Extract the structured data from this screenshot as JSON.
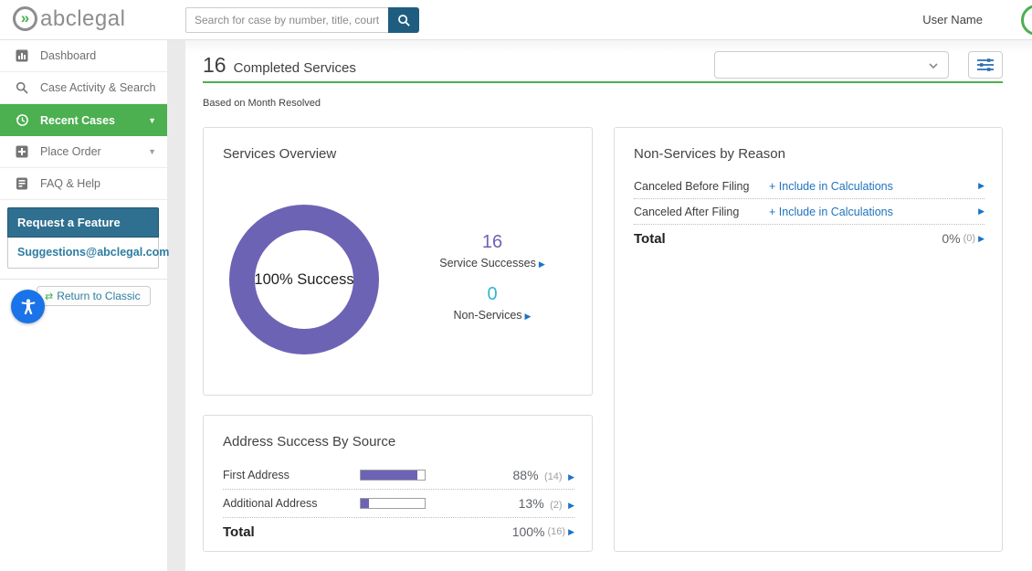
{
  "colors": {
    "accent_green": "#4caf50",
    "teal_dark": "#1e5d80",
    "teal_header": "#2f6f8f",
    "teal_link": "#2e7da0",
    "link_blue": "#1e73be",
    "arrow_blue": "#1a73c8",
    "purple": "#6d63b5",
    "cyan": "#2fb9c9",
    "slider_icon_blue": "#2a6db5"
  },
  "icons": {
    "guillemets": "»",
    "caret_down": "▼",
    "play_arrow": "▶",
    "swap_arrows": "⇄"
  },
  "header": {
    "logo_text": "abclegal",
    "search_placeholder": "Search for case by number, title, court...",
    "user_name": "User Name"
  },
  "sidebar": {
    "items": [
      {
        "label": "Dashboard"
      },
      {
        "label": "Case Activity & Search"
      },
      {
        "label": "Recent Cases",
        "active": true
      },
      {
        "label": "Place Order"
      },
      {
        "label": "FAQ & Help"
      }
    ],
    "request_feature_title": "Request a Feature",
    "request_feature_email": "Suggestions@abclegal.com",
    "return_to_classic": "Return to Classic"
  },
  "main": {
    "completed_count": "16",
    "completed_label": "Completed Services",
    "subtitle": "Based on Month Resolved",
    "services_overview": {
      "title": "Services Overview",
      "donut_center": "100% Success",
      "stats": [
        {
          "value": "16",
          "label": "Service Successes"
        },
        {
          "value": "0",
          "label": "Non-Services"
        }
      ]
    },
    "non_services": {
      "title": "Non-Services by Reason",
      "rows": [
        {
          "label": "Canceled Before Filing",
          "link": "+ Include in Calculations"
        },
        {
          "label": "Canceled After Filing",
          "link": "+ Include in Calculations"
        }
      ],
      "total_label": "Total",
      "total_value": "0%",
      "total_count": "(0)"
    },
    "address_success": {
      "title": "Address Success By Source",
      "rows": [
        {
          "label": "First Address",
          "pct": 88,
          "value": "88%",
          "count": "(14)"
        },
        {
          "label": "Additional Address",
          "pct": 13,
          "value": "13%",
          "count": "(2)"
        }
      ],
      "total_label": "Total",
      "total_value": "100%",
      "total_count": "(16)"
    }
  },
  "chart_data": [
    {
      "type": "pie",
      "title": "Services Overview",
      "categories": [
        "Service Successes",
        "Non-Services"
      ],
      "values": [
        16,
        0
      ],
      "center_label": "100% Success"
    },
    {
      "type": "bar",
      "title": "Address Success By Source",
      "categories": [
        "First Address",
        "Additional Address"
      ],
      "values": [
        88,
        13
      ],
      "counts": [
        14,
        2
      ],
      "total": {
        "percent": 100,
        "count": 16
      }
    }
  ]
}
